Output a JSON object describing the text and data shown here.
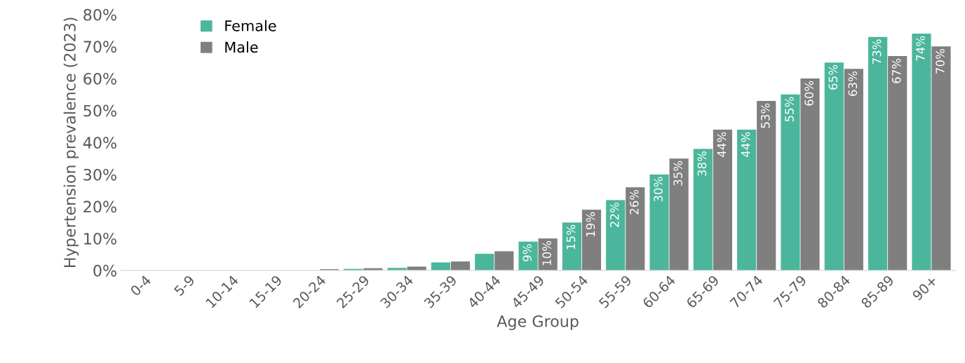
{
  "chart_data": {
    "type": "bar",
    "xlabel": "Age Group",
    "ylabel": "Hypertension prevalence (2023)",
    "categories": [
      "0-4",
      "5-9",
      "10-14",
      "15-19",
      "20-24",
      "25-29",
      "30-34",
      "35-39",
      "40-44",
      "45-49",
      "50-54",
      "55-59",
      "60-64",
      "65-69",
      "70-74",
      "75-79",
      "80-84",
      "85-89",
      "90+"
    ],
    "series": [
      {
        "name": "Female",
        "color": "#4bb69c",
        "values": [
          0,
          0,
          0,
          0,
          0,
          0.5,
          0.8,
          2.5,
          5.2,
          9,
          15,
          22,
          30,
          38,
          44,
          55,
          65,
          73,
          74
        ],
        "value_labels": [
          null,
          null,
          null,
          null,
          null,
          null,
          null,
          null,
          null,
          "9%",
          "15%",
          "22%",
          "30%",
          "38%",
          "44%",
          "55%",
          "65%",
          "73%",
          "74%"
        ]
      },
      {
        "name": "Male",
        "color": "#7f7f7f",
        "values": [
          0,
          0,
          0,
          0,
          0.4,
          0.7,
          1.2,
          2.8,
          6.0,
          10,
          19,
          26,
          35,
          44,
          53,
          60,
          63,
          67,
          70
        ],
        "value_labels": [
          null,
          null,
          null,
          null,
          null,
          null,
          null,
          null,
          null,
          "10%",
          "19%",
          "26%",
          "35%",
          "44%",
          "53%",
          "60%",
          "63%",
          "67%",
          "70%"
        ]
      }
    ],
    "ylim": [
      0,
      80
    ],
    "yticks": [
      {
        "value": 0,
        "label": "0%"
      },
      {
        "value": 10,
        "label": "10%"
      },
      {
        "value": 20,
        "label": "20%"
      },
      {
        "value": 30,
        "label": "30%"
      },
      {
        "value": 40,
        "label": "40%"
      },
      {
        "value": 50,
        "label": "50%"
      },
      {
        "value": 60,
        "label": "60%"
      },
      {
        "value": 70,
        "label": "70%"
      },
      {
        "value": 80,
        "label": "80%"
      }
    ],
    "grid": false,
    "legend": "top left"
  }
}
